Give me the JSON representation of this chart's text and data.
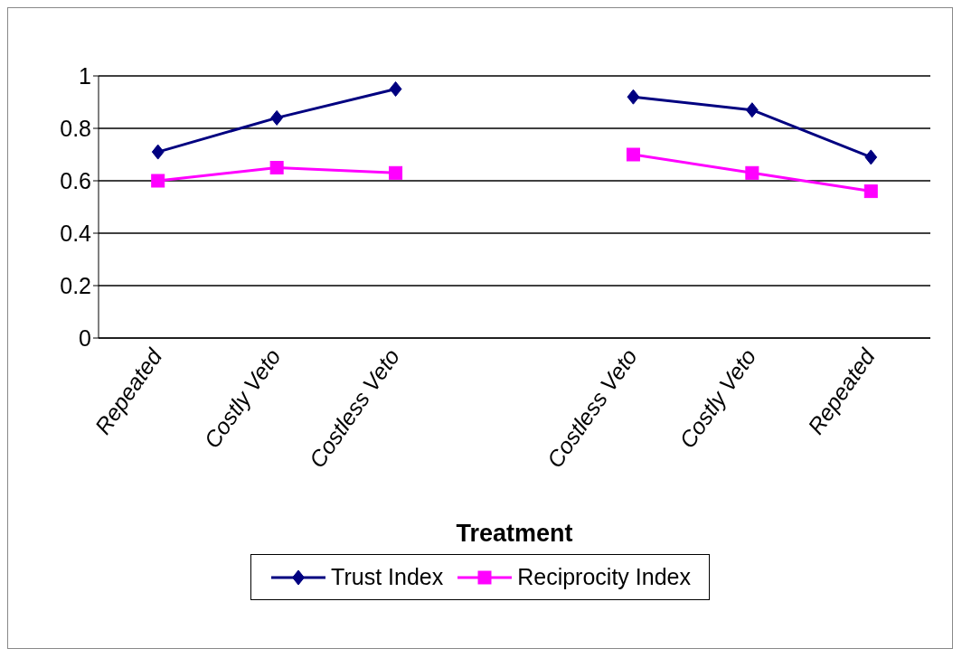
{
  "chart_data": {
    "type": "line",
    "xlabel": "Treatment",
    "categories": [
      "Repeated",
      "Costly Veto",
      "Costless Veto",
      null,
      "Costless Veto",
      "Costly Veto",
      "Repeated"
    ],
    "series": [
      {
        "name": "Trust Index",
        "color": "#000080",
        "marker": "diamond",
        "values": [
          0.71,
          0.84,
          0.95,
          null,
          0.92,
          0.87,
          0.69
        ]
      },
      {
        "name": "Reciprocity Index",
        "color": "#ff00ff",
        "marker": "square",
        "values": [
          0.6,
          0.65,
          0.63,
          null,
          0.7,
          0.63,
          0.56
        ]
      }
    ],
    "ylim": [
      0,
      1
    ],
    "yticks": [
      0,
      {
        "value": 0.2,
        "label": "0.2"
      },
      {
        "value": 0.4,
        "label": "0.4"
      },
      {
        "value": 0.6,
        "label": "0.6"
      },
      {
        "value": 0.8,
        "label": "0.8"
      },
      1
    ],
    "grid": "y",
    "legend": "bottom",
    "line_style": "solid"
  }
}
